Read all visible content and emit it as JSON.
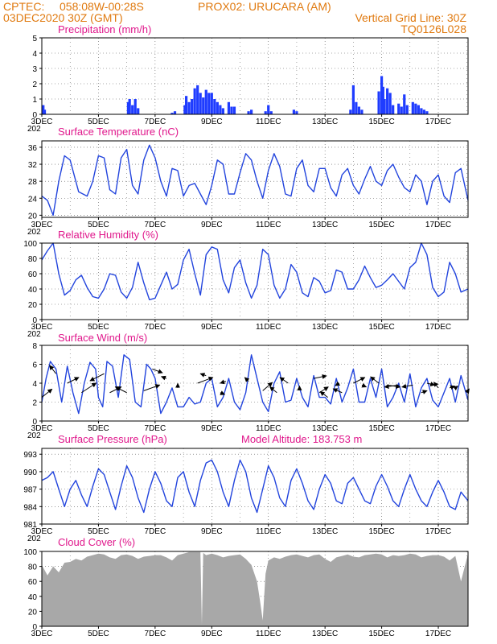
{
  "header": {
    "line1_left": "CPTEC:",
    "line1_coords": "058:08W-00:28S",
    "line1_station": "PROX02: URUCARA (AM)",
    "line2_left": "03DEC2020 30Z (GMT)",
    "line2_right": "Vertical Grid Line: 30Z",
    "line3_right": "TQ0126L028"
  },
  "x_axis": {
    "tick_labels": [
      "3DEC",
      "5DEC",
      "7DEC",
      "9DEC",
      "11DEC",
      "13DEC",
      "15DEC",
      "17DEC"
    ],
    "tick_days": [
      3,
      5,
      7,
      9,
      11,
      13,
      15,
      17
    ],
    "start_day": 3,
    "end_day": 18.05,
    "clipped_year_label": "202"
  },
  "colors": {
    "header": "#e07a10",
    "panel_title": "#e0188c",
    "line": "#2244dd",
    "bars": "#1f3cff",
    "cloud": "#a8a8a8",
    "arrow": "#000000",
    "grid": "#555555"
  },
  "chart_data": [
    {
      "id": "precip",
      "type": "bar",
      "title": "Precipitation (mm/h)",
      "ylim": [
        0,
        5
      ],
      "yticks": [
        "0",
        "1",
        "2",
        "3",
        "4",
        "5"
      ],
      "grid": true,
      "x": [
        3.05,
        3.1,
        6.05,
        6.1,
        6.2,
        6.3,
        6.4,
        7.6,
        7.7,
        8.05,
        8.1,
        8.2,
        8.3,
        8.4,
        8.5,
        8.6,
        8.7,
        8.8,
        8.9,
        9.0,
        9.1,
        9.2,
        9.3,
        9.4,
        9.6,
        9.7,
        9.8,
        10.3,
        10.4,
        10.9,
        11.0,
        11.1,
        11.9,
        12.0,
        13.9,
        14.0,
        14.1,
        14.2,
        14.3,
        14.9,
        15.0,
        15.05,
        15.1,
        15.2,
        15.3,
        15.4,
        15.6,
        15.7,
        15.8,
        15.9,
        16.1,
        16.2,
        16.3,
        16.4,
        16.5,
        16.6
      ],
      "values": [
        0.6,
        0.3,
        0.8,
        1.0,
        0.6,
        1.0,
        0.4,
        0.1,
        0.2,
        0.6,
        1.2,
        0.8,
        1.0,
        1.7,
        1.9,
        1.4,
        1.1,
        1.6,
        1.4,
        1.4,
        1.0,
        0.8,
        0.6,
        0.4,
        0.8,
        0.5,
        0.5,
        0.2,
        0.3,
        0.2,
        0.6,
        0.2,
        0.3,
        0.2,
        0.3,
        1.9,
        0.8,
        0.5,
        0.3,
        1.5,
        2.5,
        1.8,
        1.0,
        1.7,
        1.4,
        0.6,
        0.7,
        0.5,
        1.3,
        0.6,
        0.8,
        0.7,
        0.6,
        0.4,
        0.3,
        0.2
      ]
    },
    {
      "id": "temp",
      "type": "line",
      "title": "Surface Temperature (nC)",
      "ylim": [
        19.5,
        37.5
      ],
      "yticks": [
        "20",
        "24",
        "28",
        "32",
        "36"
      ],
      "yticks_values": [
        20,
        24,
        28,
        32,
        36
      ],
      "grid": true,
      "x": [
        3.0,
        3.2,
        3.4,
        3.6,
        3.8,
        4.0,
        4.3,
        4.6,
        4.8,
        5.0,
        5.2,
        5.4,
        5.6,
        5.8,
        6.0,
        6.2,
        6.4,
        6.6,
        6.8,
        7.0,
        7.2,
        7.4,
        7.6,
        7.8,
        8.0,
        8.2,
        8.4,
        8.6,
        8.8,
        9.0,
        9.2,
        9.4,
        9.6,
        9.8,
        10.0,
        10.2,
        10.4,
        10.6,
        10.8,
        11.0,
        11.2,
        11.4,
        11.6,
        11.8,
        12.0,
        12.2,
        12.4,
        12.6,
        12.8,
        13.0,
        13.2,
        13.4,
        13.6,
        13.8,
        14.0,
        14.2,
        14.4,
        14.6,
        14.8,
        15.0,
        15.2,
        15.4,
        15.6,
        15.8,
        16.0,
        16.2,
        16.4,
        16.6,
        16.8,
        17.0,
        17.2,
        17.4,
        17.6,
        17.8,
        18.05
      ],
      "values": [
        24.5,
        23.5,
        20.0,
        28.0,
        34.0,
        33.0,
        25.5,
        24.5,
        28.0,
        34.0,
        33.5,
        26.0,
        25.0,
        33.5,
        35.5,
        27.0,
        25.0,
        33.0,
        36.5,
        33.5,
        28.0,
        24.5,
        31.0,
        30.5,
        24.5,
        27.0,
        27.5,
        25.0,
        22.5,
        27.0,
        33.0,
        32.0,
        25.0,
        25.0,
        30.0,
        34.5,
        33.0,
        28.0,
        24.0,
        30.5,
        34.5,
        31.5,
        25.0,
        24.5,
        31.0,
        33.0,
        27.0,
        25.5,
        31.0,
        31.0,
        26.5,
        24.5,
        29.5,
        31.0,
        27.0,
        25.0,
        28.5,
        31.5,
        28.0,
        27.0,
        30.5,
        32.0,
        29.0,
        26.5,
        25.5,
        29.5,
        28.0,
        22.5,
        28.0,
        29.5,
        24.5,
        23.0,
        30.0,
        31.0,
        23.5
      ]
    },
    {
      "id": "rh",
      "type": "line",
      "title": "Relative Humidity (%)",
      "ylim": [
        0,
        100
      ],
      "yticks": [
        "0",
        "20",
        "40",
        "60",
        "80",
        "100"
      ],
      "yticks_values": [
        0,
        20,
        40,
        60,
        80,
        100
      ],
      "grid": true,
      "x": [
        3.0,
        3.2,
        3.4,
        3.6,
        3.8,
        4.0,
        4.2,
        4.4,
        4.6,
        4.8,
        5.0,
        5.2,
        5.4,
        5.6,
        5.8,
        6.0,
        6.2,
        6.4,
        6.6,
        6.8,
        7.0,
        7.2,
        7.4,
        7.6,
        7.8,
        8.0,
        8.2,
        8.4,
        8.6,
        8.8,
        9.0,
        9.2,
        9.4,
        9.6,
        9.8,
        10.0,
        10.2,
        10.4,
        10.6,
        10.8,
        11.0,
        11.2,
        11.4,
        11.6,
        11.8,
        12.0,
        12.2,
        12.4,
        12.6,
        12.8,
        13.0,
        13.2,
        13.4,
        13.6,
        13.8,
        14.0,
        14.2,
        14.4,
        14.6,
        14.8,
        15.0,
        15.2,
        15.4,
        15.6,
        15.8,
        16.0,
        16.2,
        16.4,
        16.6,
        16.8,
        17.0,
        17.2,
        17.4,
        17.6,
        17.8,
        18.05
      ],
      "values": [
        78,
        90,
        100,
        60,
        32,
        38,
        52,
        58,
        42,
        30,
        28,
        40,
        60,
        58,
        36,
        28,
        42,
        75,
        48,
        26,
        28,
        45,
        62,
        40,
        46,
        78,
        92,
        60,
        32,
        85,
        95,
        92,
        52,
        35,
        68,
        78,
        48,
        28,
        45,
        92,
        85,
        45,
        28,
        40,
        72,
        62,
        35,
        30,
        55,
        50,
        35,
        38,
        65,
        62,
        40,
        40,
        52,
        70,
        55,
        42,
        45,
        52,
        60,
        50,
        40,
        68,
        75,
        100,
        85,
        42,
        30,
        36,
        75,
        60,
        36,
        40
      ]
    },
    {
      "id": "wind",
      "type": "line",
      "title": "Surface Wind (m/s)",
      "ylim": [
        0,
        8
      ],
      "yticks": [
        "0",
        "2",
        "4",
        "6",
        "8"
      ],
      "yticks_values": [
        0,
        2,
        4,
        6,
        8
      ],
      "grid": true,
      "x": [
        3.0,
        3.15,
        3.3,
        3.5,
        3.7,
        3.9,
        4.1,
        4.3,
        4.5,
        4.7,
        4.9,
        5.0,
        5.15,
        5.3,
        5.5,
        5.7,
        5.9,
        6.1,
        6.3,
        6.5,
        6.7,
        6.85,
        7.0,
        7.2,
        7.4,
        7.6,
        7.8,
        8.0,
        8.2,
        8.4,
        8.6,
        8.8,
        9.0,
        9.2,
        9.4,
        9.6,
        9.8,
        10.0,
        10.2,
        10.4,
        10.6,
        10.8,
        11.0,
        11.2,
        11.4,
        11.6,
        11.8,
        12.0,
        12.2,
        12.4,
        12.6,
        12.8,
        13.0,
        13.2,
        13.4,
        13.6,
        13.8,
        14.0,
        14.2,
        14.4,
        14.6,
        14.8,
        15.0,
        15.2,
        15.4,
        15.6,
        15.8,
        16.0,
        16.2,
        16.4,
        16.6,
        16.8,
        17.0,
        17.2,
        17.4,
        17.6,
        17.8,
        18.05
      ],
      "values": [
        2.0,
        4.5,
        6.3,
        5.5,
        2.0,
        5.8,
        3.0,
        0.8,
        4.0,
        6.2,
        5.5,
        2.5,
        1.5,
        6.3,
        5.8,
        2.5,
        7.0,
        6.5,
        2.0,
        1.5,
        6.0,
        5.5,
        4.5,
        0.8,
        2.0,
        3.5,
        1.5,
        1.5,
        2.5,
        1.8,
        2.0,
        4.0,
        4.5,
        1.5,
        2.5,
        4.5,
        2.0,
        1.2,
        3.0,
        7.0,
        4.5,
        2.0,
        1.0,
        4.0,
        5.2,
        2.0,
        2.2,
        4.5,
        2.5,
        1.5,
        4.8,
        2.5,
        2.5,
        1.8,
        4.5,
        2.0,
        3.5,
        5.5,
        2.0,
        2.0,
        4.5,
        2.5,
        5.5,
        1.5,
        2.5,
        4.0,
        2.0,
        5.0,
        1.5,
        3.5,
        4.5,
        2.2,
        1.5,
        3.0,
        4.5,
        2.0,
        4.8,
        2.2
      ]
    },
    {
      "id": "wind_vectors",
      "type": "scatter",
      "title": "",
      "x": [
        3.0,
        3.5,
        3.9,
        4.4,
        5.2,
        5.4,
        6.0,
        6.6,
        6.9,
        7.4,
        7.8,
        8.5,
        8.8,
        9.3,
        9.5,
        10.3,
        10.8,
        11.3,
        11.7,
        12.1,
        12.6,
        12.8,
        13.1,
        13.5,
        13.6,
        14.0,
        14.3,
        14.9,
        15.2,
        15.6,
        16.1,
        16.4,
        16.6,
        17.0,
        17.4,
        17.6,
        18.0
      ],
      "values": [
        2.5,
        5.0,
        4.0,
        3.0,
        5.0,
        3.0,
        3.0,
        3.2,
        5.5,
        4.5,
        3.5,
        4.0,
        4.8,
        3.0,
        4.2,
        4.2,
        3.2,
        3.0,
        4.0,
        3.3,
        4.5,
        3.0,
        2.5,
        4.0,
        3.0,
        4.0,
        3.8,
        4.0,
        3.8,
        3.8,
        3.8,
        3.0,
        4.0,
        3.5,
        3.5,
        3.5,
        3.0
      ],
      "u": [
        1.6,
        -1.0,
        1.8,
        2.3,
        -2.2,
        1.8,
        -1.8,
        2.5,
        1.6,
        -0.8,
        0.0,
        2.4,
        -0.9,
        0.7,
        -0.9,
        -0.6,
        1.5,
        -1.1,
        -1.3,
        0.0,
        2.0,
        1.4,
        -1.2,
        -0.6,
        -1.4,
        1.8,
        0.7,
        -1.3,
        2.0,
        -2.2,
        -1.7,
        0.9,
        1.2,
        -0.7,
        0.8,
        0.4,
        0.4
      ],
      "v": [
        1.3,
        1.3,
        0.9,
        1.5,
        -1.1,
        0.9,
        0.9,
        0.9,
        -0.6,
        0.3,
        0.7,
        0.9,
        0.3,
        -0.3,
        -0.3,
        0.6,
        1.3,
        0.9,
        0.9,
        0.6,
        0.4,
        0.9,
        0.9,
        -0.4,
        0.6,
        0.9,
        -0.3,
        1.0,
        -0.3,
        -0.3,
        -0.3,
        0.3,
        -0.3,
        0.9,
        0.3,
        0.3,
        0.6
      ]
    },
    {
      "id": "pressure",
      "type": "line",
      "title": "Surface Pressure (hPa)",
      "subtitle": "Model Altitude: 183.753 m",
      "ylim": [
        981,
        994
      ],
      "yticks": [
        "981",
        "984",
        "987",
        "990",
        "993"
      ],
      "yticks_values": [
        981,
        984,
        987,
        990,
        993
      ],
      "grid": true,
      "x": [
        3.0,
        3.2,
        3.4,
        3.6,
        3.8,
        4.0,
        4.2,
        4.4,
        4.6,
        4.8,
        5.0,
        5.2,
        5.4,
        5.6,
        5.8,
        6.0,
        6.2,
        6.4,
        6.6,
        6.8,
        7.0,
        7.2,
        7.4,
        7.6,
        7.8,
        8.0,
        8.2,
        8.4,
        8.6,
        8.8,
        9.0,
        9.2,
        9.4,
        9.6,
        9.8,
        10.0,
        10.2,
        10.4,
        10.6,
        10.8,
        11.0,
        11.2,
        11.4,
        11.6,
        11.8,
        12.0,
        12.2,
        12.4,
        12.6,
        12.8,
        13.0,
        13.2,
        13.4,
        13.6,
        13.8,
        14.0,
        14.2,
        14.4,
        14.6,
        14.8,
        15.0,
        15.2,
        15.4,
        15.6,
        15.8,
        16.0,
        16.2,
        16.4,
        16.6,
        16.8,
        17.0,
        17.2,
        17.4,
        17.6,
        17.8,
        18.05
      ],
      "values": [
        988.5,
        989.0,
        990.0,
        987.0,
        984.0,
        987.0,
        988.5,
        986.0,
        984.0,
        987.5,
        990.5,
        989.5,
        986.5,
        983.5,
        987.5,
        991.0,
        989.0,
        985.5,
        983.0,
        987.0,
        990.0,
        988.0,
        985.0,
        984.0,
        989.0,
        990.0,
        986.5,
        984.0,
        988.5,
        991.5,
        992.0,
        990.0,
        986.5,
        984.0,
        988.5,
        992.0,
        990.0,
        985.5,
        983.0,
        987.0,
        991.0,
        989.0,
        985.5,
        984.0,
        988.5,
        990.5,
        988.0,
        985.0,
        983.5,
        987.0,
        989.5,
        988.0,
        985.0,
        984.5,
        988.0,
        989.0,
        987.0,
        985.0,
        984.5,
        987.5,
        989.5,
        987.5,
        985.0,
        984.0,
        987.0,
        989.5,
        987.0,
        985.0,
        984.0,
        986.5,
        988.5,
        986.5,
        984.0,
        983.5,
        986.5,
        985.0
      ]
    },
    {
      "id": "cloud",
      "type": "area",
      "title": "Cloud Cover (%)",
      "ylim": [
        0,
        100
      ],
      "yticks": [
        "0",
        "20",
        "40",
        "60",
        "80",
        "100"
      ],
      "yticks_values": [
        0,
        20,
        40,
        60,
        80,
        100
      ],
      "grid": true,
      "x": [
        3.0,
        3.2,
        3.4,
        3.6,
        3.8,
        4.0,
        4.2,
        4.4,
        4.6,
        4.8,
        5.0,
        5.2,
        5.4,
        5.6,
        5.8,
        6.0,
        6.2,
        6.4,
        6.6,
        6.8,
        7.0,
        7.2,
        7.4,
        7.6,
        7.8,
        8.0,
        8.2,
        8.4,
        8.6,
        8.65,
        8.7,
        8.8,
        9.0,
        9.2,
        9.4,
        9.6,
        9.8,
        10.0,
        10.2,
        10.4,
        10.6,
        10.7,
        10.8,
        10.9,
        11.0,
        11.2,
        11.4,
        11.6,
        11.8,
        12.0,
        12.2,
        12.4,
        12.6,
        12.8,
        13.0,
        13.2,
        13.4,
        13.6,
        13.8,
        14.0,
        14.2,
        14.4,
        14.6,
        14.8,
        15.0,
        15.2,
        15.4,
        15.6,
        15.8,
        16.0,
        16.2,
        16.4,
        16.6,
        16.8,
        17.0,
        17.2,
        17.4,
        17.6,
        17.8,
        18.05
      ],
      "values": [
        82,
        68,
        80,
        72,
        85,
        86,
        90,
        88,
        93,
        95,
        97,
        96,
        92,
        90,
        95,
        96,
        94,
        90,
        93,
        94,
        95,
        95,
        92,
        88,
        95,
        97,
        99,
        99,
        99,
        2,
        98,
        95,
        97,
        95,
        92,
        94,
        95,
        96,
        90,
        82,
        60,
        35,
        8,
        70,
        88,
        92,
        90,
        93,
        95,
        96,
        94,
        92,
        95,
        96,
        90,
        86,
        92,
        94,
        96,
        93,
        92,
        95,
        96,
        97,
        96,
        92,
        95,
        94,
        95,
        97,
        96,
        92,
        94,
        95,
        95,
        93,
        88,
        94,
        60,
        97
      ]
    }
  ]
}
